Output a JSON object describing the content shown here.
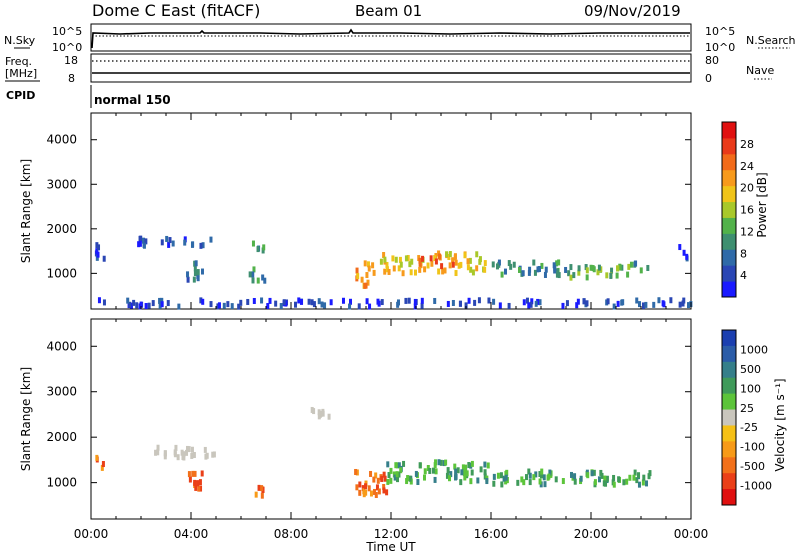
{
  "header": {
    "station": "Dome C East (fitACF)",
    "beam": "Beam 01",
    "date": "09/Nov/2019"
  },
  "strip_panels": {
    "nsky": {
      "label": "N.Sky",
      "left_ticks": [
        "10^5",
        "10^0"
      ],
      "right_ticks": [
        "10^5",
        "10^0"
      ],
      "right_label": "N.Search"
    },
    "freq": {
      "label_line1": "Freq.",
      "label_line2": "[MHz]",
      "left_ticks": [
        "18",
        "8"
      ],
      "right_ticks": [
        "80",
        "0"
      ],
      "right_label": "Nave"
    },
    "cpid": {
      "label": "CPID",
      "value": "normal 150"
    }
  },
  "chart_data": [
    {
      "type": "heatmap",
      "name": "Power",
      "ylabel": "Slant Range [km]",
      "ylim": [
        200,
        4600
      ],
      "yticks": [
        "1000",
        "2000",
        "3000",
        "4000"
      ],
      "xlim_hours": [
        0,
        24
      ],
      "colorbar": {
        "label": "Power [dB]",
        "ticks": [
          "4",
          "8",
          "12",
          "16",
          "20",
          "24",
          "28"
        ],
        "colors": [
          "#1a1aff",
          "#2a46b4",
          "#2f6aa8",
          "#3e8f70",
          "#52b24a",
          "#a8c82a",
          "#f0c419",
          "#f79a1c",
          "#f26b1a",
          "#e93a1a",
          "#e01010"
        ]
      },
      "echo_regions": [
        {
          "x": [
            0.1,
            0.5
          ],
          "y": [
            1300,
            1700
          ],
          "level": 1
        },
        {
          "x": [
            1.8,
            5.0
          ],
          "y": [
            1600,
            1780
          ],
          "level": 1
        },
        {
          "x": [
            3.8,
            4.5
          ],
          "y": [
            850,
            1250
          ],
          "level": 2
        },
        {
          "x": [
            6.3,
            6.9
          ],
          "y": [
            700,
            1100
          ],
          "level": 3
        },
        {
          "x": [
            6.4,
            6.9
          ],
          "y": [
            1500,
            1750
          ],
          "level": 3
        },
        {
          "x": [
            10.5,
            11.5
          ],
          "y": [
            700,
            1250
          ],
          "level": 7
        },
        {
          "x": [
            11.5,
            15.8
          ],
          "y": [
            1000,
            1450
          ],
          "level": 6
        },
        {
          "x": [
            13.0,
            14.5
          ],
          "y": [
            1150,
            1400
          ],
          "level": 8
        },
        {
          "x": [
            16.0,
            19.0
          ],
          "y": [
            950,
            1250
          ],
          "level": 3
        },
        {
          "x": [
            19.0,
            21.5
          ],
          "y": [
            900,
            1150
          ],
          "level": 4
        },
        {
          "x": [
            21.5,
            22.5
          ],
          "y": [
            1050,
            1250
          ],
          "level": 3
        },
        {
          "x": [
            23.4,
            23.8
          ],
          "y": [
            1300,
            1600
          ],
          "level": 1
        },
        {
          "x": [
            0.0,
            24.0
          ],
          "y": [
            250,
            400
          ],
          "level": 1
        }
      ]
    },
    {
      "type": "heatmap",
      "name": "Velocity",
      "xlabel": "Time UT",
      "xticks": [
        "00:00",
        "04:00",
        "08:00",
        "12:00",
        "16:00",
        "20:00",
        "00:00"
      ],
      "ylabel": "Slant Range [km]",
      "ylim": [
        200,
        4600
      ],
      "yticks": [
        "1000",
        "2000",
        "3000",
        "4000"
      ],
      "xlim_hours": [
        0,
        24
      ],
      "colorbar": {
        "label": "Velocity [m s⁻¹]",
        "ticks": [
          "1000",
          "500",
          "100",
          "25",
          "-25",
          "-100",
          "-500",
          "-1000"
        ],
        "colors": [
          "#1b3fb0",
          "#2b5ca8",
          "#357f8a",
          "#3f9a5a",
          "#5cc43a",
          "#c9c6bd",
          "#f5c016",
          "#f79a18",
          "#f2701a",
          "#ea3f18",
          "#e01010"
        ]
      },
      "echo_regions": [
        {
          "x": [
            0.1,
            0.5
          ],
          "y": [
            1300,
            1700
          ],
          "class": "negative"
        },
        {
          "x": [
            2.5,
            5.0
          ],
          "y": [
            1550,
            1780
          ],
          "class": "ground-scatter"
        },
        {
          "x": [
            3.8,
            4.6
          ],
          "y": [
            850,
            1250
          ],
          "class": "negative"
        },
        {
          "x": [
            6.3,
            6.9
          ],
          "y": [
            700,
            900
          ],
          "class": "negative"
        },
        {
          "x": [
            10.5,
            12.0
          ],
          "y": [
            700,
            1250
          ],
          "class": "negative"
        },
        {
          "x": [
            11.8,
            16.0
          ],
          "y": [
            1000,
            1450
          ],
          "class": "positive"
        },
        {
          "x": [
            16.0,
            22.5
          ],
          "y": [
            950,
            1250
          ],
          "class": "positive"
        },
        {
          "x": [
            8.5,
            9.5
          ],
          "y": [
            2400,
            2600
          ],
          "class": "ground-scatter"
        }
      ]
    }
  ]
}
